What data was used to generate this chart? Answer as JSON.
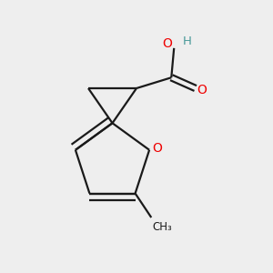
{
  "background_color": "#eeeeee",
  "bond_color": "#1a1a1a",
  "oxygen_color": "#ee0000",
  "hydrogen_color": "#4a9a9a",
  "line_width": 1.6,
  "dbo": 0.018,
  "figsize": [
    3.0,
    3.0
  ],
  "dpi": 100,
  "xlim": [
    0.0,
    1.0
  ],
  "ylim": [
    0.0,
    1.0
  ]
}
